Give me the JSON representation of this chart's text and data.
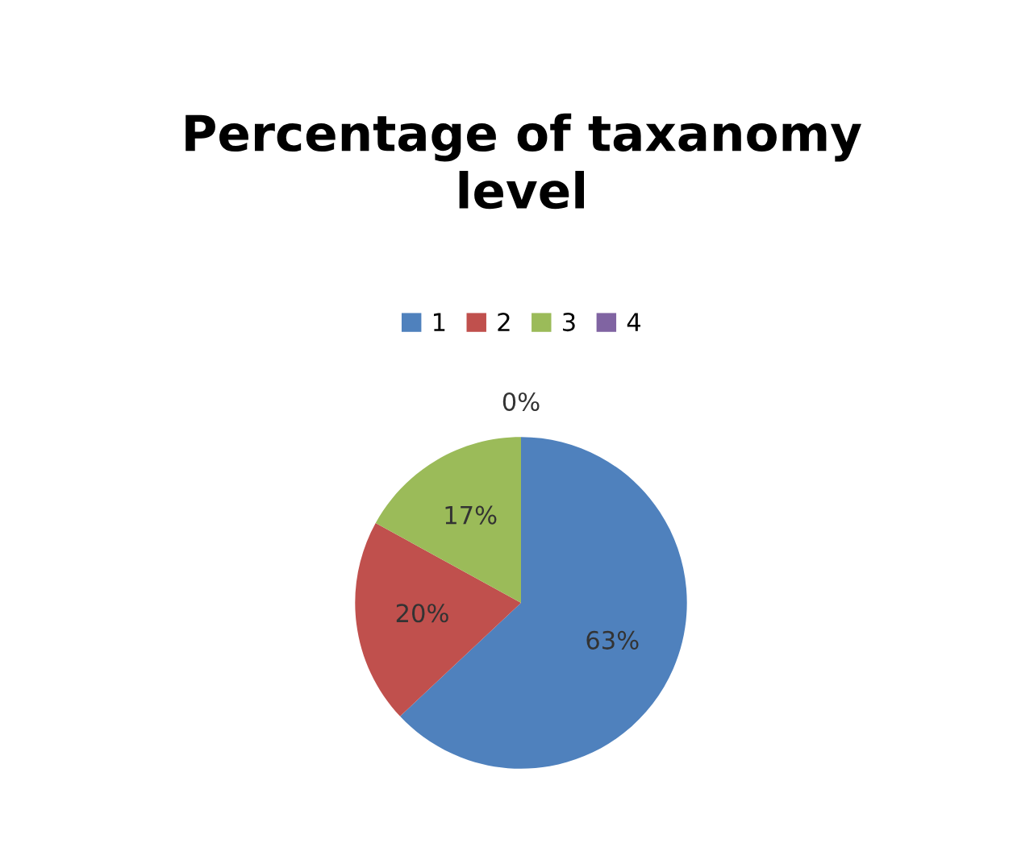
{
  "chart_data": {
    "type": "pie",
    "title": "Percentage of taxanomy\nlevel",
    "categories": [
      "1",
      "2",
      "3",
      "4"
    ],
    "values": [
      63,
      20,
      17,
      0
    ],
    "value_labels": [
      "63%",
      "20%",
      "17%",
      "0%"
    ],
    "colors": [
      "#4f81bd",
      "#c0504d",
      "#9bbb59",
      "#8064a2"
    ],
    "legend": "top"
  }
}
